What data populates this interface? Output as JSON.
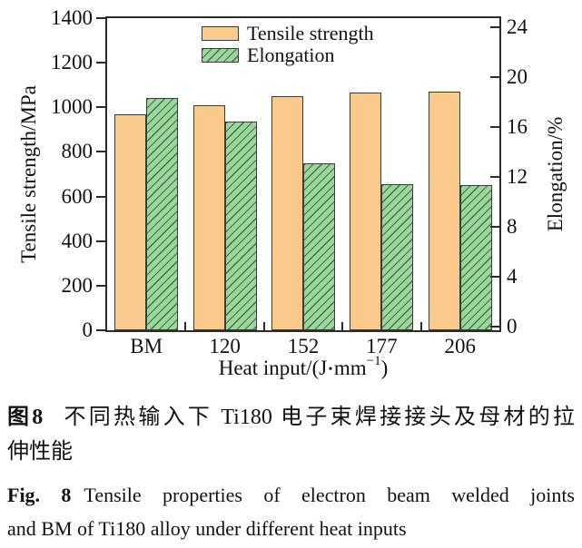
{
  "captions": {
    "zh": {
      "label": "图8",
      "lines": [
        "不同热输入下 Ti180 电子束焊接接头及母材的拉",
        "伸性能"
      ]
    },
    "en": {
      "label": "Fig. 8",
      "lines": [
        "Tensile properties of electron beam welded joints",
        "and BM of Ti180 alloy under different heat inputs"
      ]
    }
  },
  "chart_data": {
    "type": "bar",
    "title": "",
    "categories": [
      "BM",
      "120",
      "152",
      "177",
      "206"
    ],
    "series": [
      {
        "name": "Tensile strength",
        "axis": "left",
        "values": [
          970,
          1010,
          1050,
          1065,
          1070
        ],
        "fill": "#faca8c",
        "pattern": "solid"
      },
      {
        "name": "Elongation",
        "axis": "right",
        "values": [
          18.3,
          16.4,
          13.1,
          11.4,
          11.3
        ],
        "fill": "#9bd69a",
        "pattern": "diagonal-hatch",
        "hatch_color": "#3f7046"
      }
    ],
    "xlabel": {
      "pre": "Heat input/(J",
      "dot": "•",
      "mid": "mm",
      "sup": "−1",
      "post": ")"
    },
    "ylabel_left": "Tensile strength/MPa",
    "ylabel_right": "Elongation/%",
    "ylim_left": [
      0,
      1400
    ],
    "yticks_left": [
      0,
      200,
      400,
      600,
      800,
      1000,
      1200,
      1400
    ],
    "ylim_right": [
      -0.3,
      24.7
    ],
    "yticks_right": [
      0,
      4,
      8,
      12,
      16,
      20,
      24
    ],
    "grid": false,
    "legend_position": "inside-top-center",
    "frame_color": "#2b2b2b",
    "text_color": "#111111"
  }
}
